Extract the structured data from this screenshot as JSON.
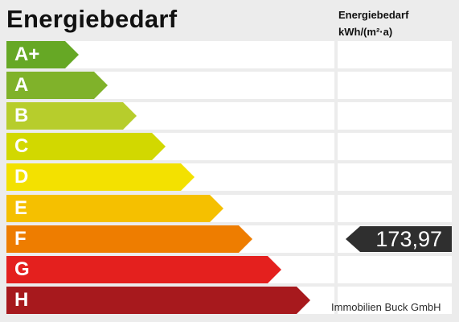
{
  "header": {
    "title": "Energiebedarf",
    "unit_line1": "Energiebedarf",
    "unit_line2": "kWh/(m²·a)"
  },
  "classes": [
    {
      "label": "A+",
      "color": "#66a825"
    },
    {
      "label": "A",
      "color": "#80b22a"
    },
    {
      "label": "B",
      "color": "#b7cd2c"
    },
    {
      "label": "C",
      "color": "#d2d800"
    },
    {
      "label": "D",
      "color": "#f3e100"
    },
    {
      "label": "E",
      "color": "#f5c000"
    },
    {
      "label": "F",
      "color": "#ee7d00"
    },
    {
      "label": "G",
      "color": "#e4201e"
    },
    {
      "label": "H",
      "color": "#a7191d"
    }
  ],
  "indicator": {
    "value": "173,97",
    "class": "F",
    "color": "#2f2f2f"
  },
  "watermark": "Immobilien Buck GmbH"
}
